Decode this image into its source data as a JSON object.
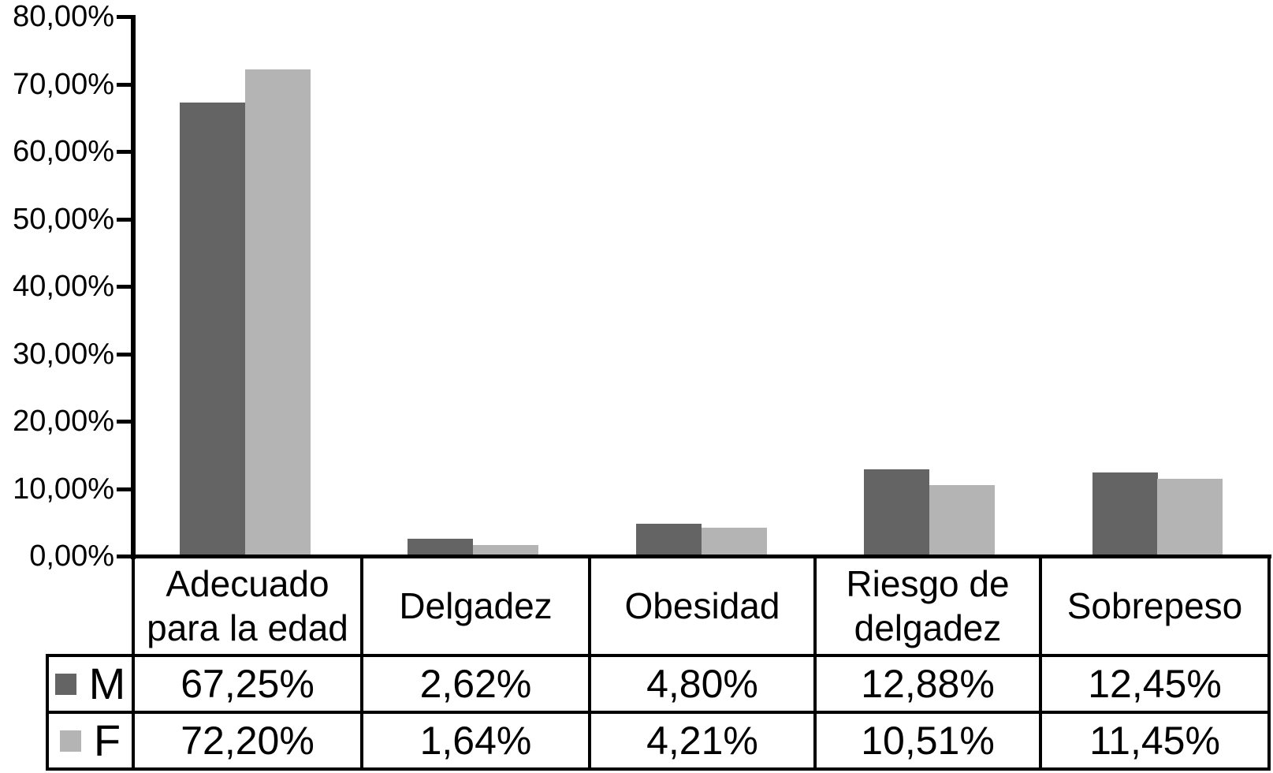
{
  "chart_data": {
    "type": "bar",
    "title": "",
    "xlabel": "",
    "ylabel": "",
    "grid": false,
    "legend_position": "data-table-left",
    "data_table_shown": true,
    "categories": [
      "Adecuado para la edad",
      "Delgadez",
      "Obesidad",
      "Riesgo de delgadez",
      "Sobrepeso"
    ],
    "category_labels_display": [
      "Adecuado\npara la edad",
      "Delgadez",
      "Obesidad",
      "Riesgo de\ndelgadez",
      "Sobrepeso"
    ],
    "series": [
      {
        "name": "M",
        "color": "#646464",
        "values": [
          67.25,
          2.62,
          4.8,
          12.88,
          12.45
        ],
        "value_labels": [
          "67,25%",
          "2,62%",
          "4,80%",
          "12,88%",
          "12,45%"
        ]
      },
      {
        "name": "F",
        "color": "#b4b4b4",
        "values": [
          72.2,
          1.64,
          4.21,
          10.51,
          11.45
        ],
        "value_labels": [
          "72,20%",
          "1,64%",
          "4,21%",
          "10,51%",
          "11,45%"
        ]
      }
    ],
    "y_axis": {
      "min": 0,
      "max": 80,
      "step": 10,
      "tick_labels": [
        "0,00%",
        "10,00%",
        "20,00%",
        "30,00%",
        "40,00%",
        "50,00%",
        "60,00%",
        "70,00%",
        "80,00%"
      ]
    }
  },
  "colors": {
    "series_m": "#646464",
    "series_f": "#b4b4b4",
    "axis": "#000000",
    "table_border": "#000000",
    "text": "#000000",
    "background": "#ffffff"
  }
}
